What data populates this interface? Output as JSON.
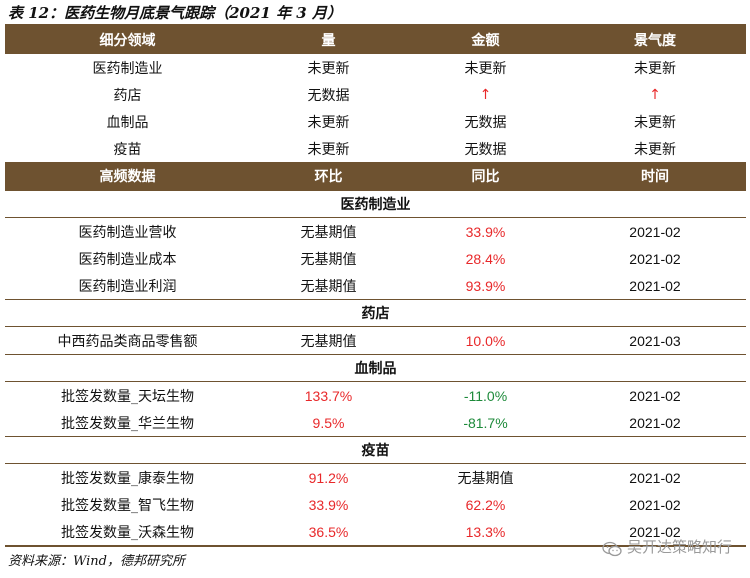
{
  "title": "表 12：医药生物月底景气跟踪（2021 年 3 月）",
  "top_header": [
    "细分领域",
    "量",
    "金额",
    "景气度"
  ],
  "top_rows": [
    {
      "name": "医药制造业",
      "qty": "未更新",
      "amount": "未更新",
      "sentiment": "未更新"
    },
    {
      "name": "药店",
      "qty": "无数据",
      "amount": "↑",
      "sentiment": "↑"
    },
    {
      "name": "血制品",
      "qty": "未更新",
      "amount": "无数据",
      "sentiment": "未更新"
    },
    {
      "name": "疫苗",
      "qty": "未更新",
      "amount": "无数据",
      "sentiment": "未更新"
    }
  ],
  "hf_header": [
    "高频数据",
    "环比",
    "同比",
    "时间"
  ],
  "sections": [
    {
      "title": "医药制造业",
      "rows": [
        {
          "name": "医药制造业营收",
          "mom": "无基期值",
          "yoy": "33.9%",
          "date": "2021-02"
        },
        {
          "name": "医药制造业成本",
          "mom": "无基期值",
          "yoy": "28.4%",
          "date": "2021-02"
        },
        {
          "name": "医药制造业利润",
          "mom": "无基期值",
          "yoy": "93.9%",
          "date": "2021-02"
        }
      ]
    },
    {
      "title": "药店",
      "rows": [
        {
          "name": "中西药品类商品零售额",
          "mom": "无基期值",
          "yoy": "10.0%",
          "date": "2021-03"
        }
      ]
    },
    {
      "title": "血制品",
      "rows": [
        {
          "name": "批签发数量_天坛生物",
          "mom": "133.7%",
          "yoy": "-11.0%",
          "date": "2021-02"
        },
        {
          "name": "批签发数量_华兰生物",
          "mom": "9.5%",
          "yoy": "-81.7%",
          "date": "2021-02"
        }
      ]
    },
    {
      "title": "疫苗",
      "rows": [
        {
          "name": "批签发数量_康泰生物",
          "mom": "91.2%",
          "yoy": "无基期值",
          "date": "2021-02"
        },
        {
          "name": "批签发数量_智飞生物",
          "mom": "33.9%",
          "yoy": "62.2%",
          "date": "2021-02"
        },
        {
          "name": "批签发数量_沃森生物",
          "mom": "36.5%",
          "yoy": "13.3%",
          "date": "2021-02"
        }
      ]
    }
  ],
  "source": "资料来源：Wind，德邦研究所",
  "watermark": "吴开达策略知行",
  "colors": {
    "header_bg": "#6e5230",
    "positive": "#e8282a",
    "negative": "#1d8a3a"
  }
}
